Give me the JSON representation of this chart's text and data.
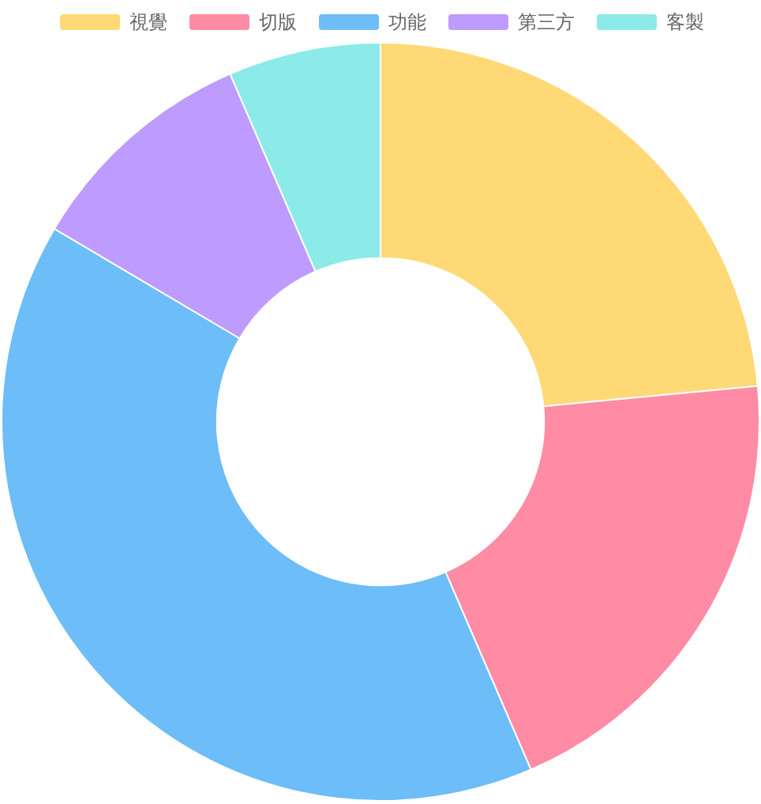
{
  "chart_data": {
    "type": "donut",
    "categories": [
      "視覺",
      "切版",
      "功能",
      "第三方",
      "客製"
    ],
    "values": [
      23.5,
      20,
      40,
      10,
      6.5
    ],
    "colors": [
      "#ffd976",
      "#ff8ba4",
      "#6cbdf8",
      "#be9bfe",
      "#8ceae9"
    ],
    "legend": "top"
  }
}
